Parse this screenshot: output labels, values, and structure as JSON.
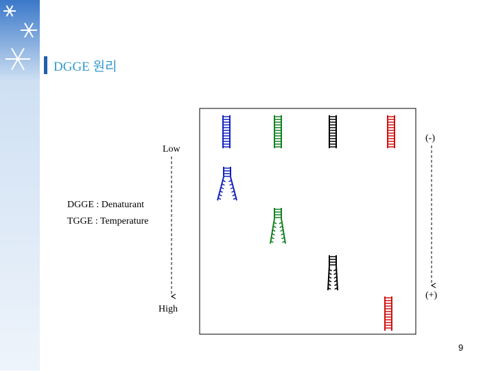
{
  "header": {
    "title": "DGGE 원리"
  },
  "diagram": {
    "gradient_top": "Low",
    "gradient_bottom": "High",
    "legend_lines": [
      "DGGE : Denaturant",
      "TGGE : Temperature"
    ],
    "pole_top": "(-)",
    "pole_bottom": "(+)"
  },
  "footer": {
    "page_number": "9"
  }
}
